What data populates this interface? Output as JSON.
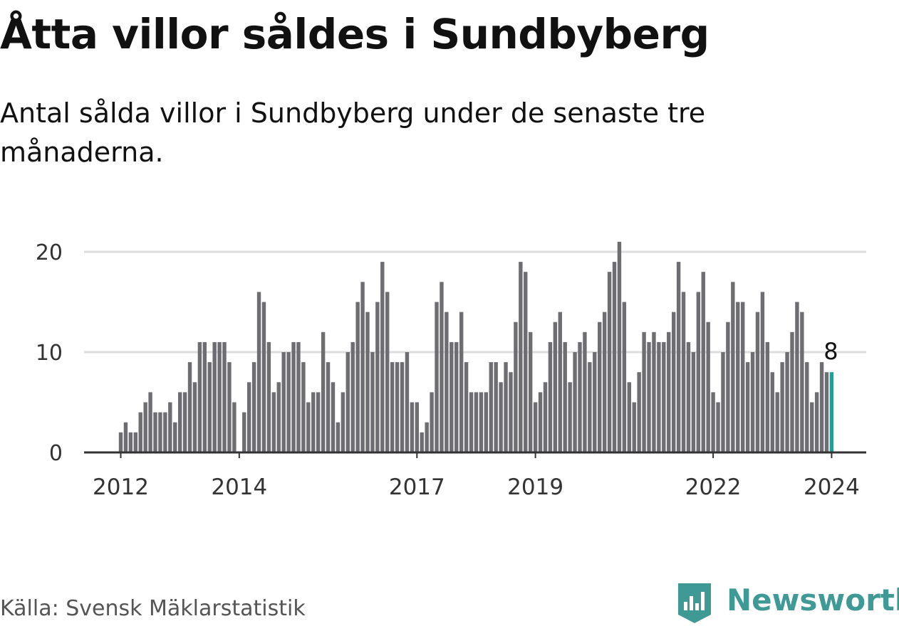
{
  "title": "Åtta villor såldes i Sundbyberg",
  "subtitle": "Antal sålda villor i Sundbyberg under de senaste tre månaderna.",
  "source": "Källa: Svensk Mäklarstatistik",
  "brand": {
    "name": "Newsworthy",
    "icon": "newsworthy-logo-icon",
    "color": "#3f9a95"
  },
  "colors": {
    "bar": "#6e6d72",
    "highlight": "#16a39a",
    "grid": "#dddddd",
    "axis": "#333333"
  },
  "chart_data": {
    "type": "bar",
    "title": "Åtta villor såldes i Sundbyberg",
    "xlabel": "",
    "ylabel": "",
    "start": {
      "year": 2012,
      "month": 1
    },
    "ylim": [
      0,
      21
    ],
    "yticks": [
      0,
      10,
      20
    ],
    "yticks_labels": [
      "0",
      "10",
      "20"
    ],
    "xticks": [
      {
        "label": "2012",
        "index": 0
      },
      {
        "label": "2014",
        "index": 24
      },
      {
        "label": "2017",
        "index": 60
      },
      {
        "label": "2019",
        "index": 84
      },
      {
        "label": "2022",
        "index": 120
      },
      {
        "label": "2024",
        "index": 144
      }
    ],
    "values": [
      2,
      3,
      2,
      2,
      4,
      5,
      6,
      4,
      4,
      4,
      5,
      3,
      6,
      6,
      9,
      7,
      11,
      11,
      9,
      11,
      11,
      11,
      9,
      5,
      0,
      4,
      7,
      9,
      16,
      15,
      11,
      6,
      7,
      10,
      10,
      11,
      11,
      9,
      5,
      6,
      6,
      12,
      9,
      7,
      3,
      6,
      10,
      11,
      15,
      17,
      14,
      10,
      15,
      19,
      16,
      9,
      9,
      9,
      10,
      5,
      5,
      2,
      3,
      6,
      15,
      17,
      14,
      11,
      11,
      14,
      9,
      6,
      6,
      6,
      6,
      9,
      9,
      7,
      9,
      8,
      13,
      19,
      18,
      12,
      5,
      6,
      7,
      11,
      13,
      14,
      11,
      7,
      10,
      11,
      12,
      9,
      10,
      13,
      14,
      18,
      19,
      21,
      15,
      7,
      5,
      8,
      12,
      11,
      12,
      11,
      11,
      12,
      14,
      19,
      16,
      11,
      10,
      16,
      18,
      13,
      6,
      5,
      10,
      13,
      17,
      15,
      15,
      9,
      10,
      14,
      16,
      11,
      8,
      6,
      9,
      10,
      12,
      15,
      14,
      9,
      5,
      6,
      9,
      8,
      8
    ],
    "highlight": {
      "index": 144,
      "label": "8"
    }
  }
}
